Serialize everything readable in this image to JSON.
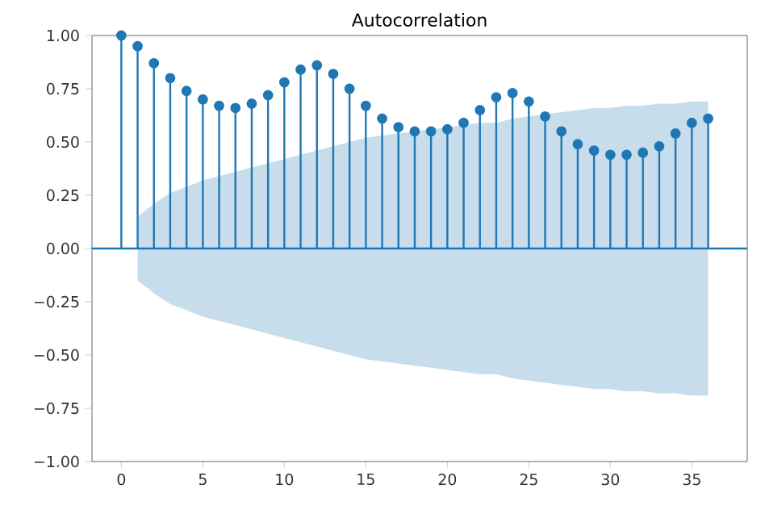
{
  "chart_data": {
    "type": "lollipop",
    "title": "Autocorrelation",
    "x": [
      0,
      1,
      2,
      3,
      4,
      5,
      6,
      7,
      8,
      9,
      10,
      11,
      12,
      13,
      14,
      15,
      16,
      17,
      18,
      19,
      20,
      21,
      22,
      23,
      24,
      25,
      26,
      27,
      28,
      29,
      30,
      31,
      32,
      33,
      34,
      35,
      36
    ],
    "marker": "circle",
    "series": [
      {
        "color": "#1f77b4",
        "values": [
          1.0,
          0.95,
          0.87,
          0.8,
          0.74,
          0.7,
          0.67,
          0.66,
          0.68,
          0.72,
          0.78,
          0.84,
          0.86,
          0.82,
          0.75,
          0.67,
          0.61,
          0.57,
          0.55,
          0.55,
          0.56,
          0.59,
          0.65,
          0.71,
          0.73,
          0.69,
          0.62,
          0.55,
          0.49,
          0.46,
          0.44,
          0.44,
          0.45,
          0.48,
          0.54,
          0.59,
          0.61
        ],
        "upper": [
          null,
          0.15,
          0.21,
          0.26,
          0.29,
          0.32,
          0.34,
          0.36,
          0.38,
          0.4,
          0.42,
          0.44,
          0.46,
          0.48,
          0.5,
          0.52,
          0.53,
          0.54,
          0.55,
          0.56,
          0.57,
          0.58,
          0.59,
          0.59,
          0.61,
          0.62,
          0.63,
          0.64,
          0.65,
          0.66,
          0.66,
          0.67,
          0.67,
          0.68,
          0.68,
          0.69,
          0.69
        ],
        "lower": [
          null,
          -0.15,
          -0.21,
          -0.26,
          -0.29,
          -0.32,
          -0.34,
          -0.36,
          -0.38,
          -0.4,
          -0.42,
          -0.44,
          -0.46,
          -0.48,
          -0.5,
          -0.52,
          -0.53,
          -0.54,
          -0.55,
          -0.56,
          -0.57,
          -0.58,
          -0.59,
          -0.59,
          -0.61,
          -0.62,
          -0.63,
          -0.64,
          -0.65,
          -0.66,
          -0.66,
          -0.67,
          -0.67,
          -0.68,
          -0.68,
          -0.69,
          -0.69
        ]
      }
    ],
    "ref_lines": [
      {
        "axis": "y",
        "value": 0,
        "color": "#1f77b4"
      }
    ],
    "xlim": [
      -1.8,
      38.4
    ],
    "ylim": [
      -1,
      1
    ],
    "xticks": [
      0,
      5,
      10,
      15,
      20,
      25,
      30,
      35
    ],
    "yticks": [
      {
        "value": -1,
        "label": "−1.00"
      },
      {
        "value": -0.75,
        "label": "−0.75"
      },
      {
        "value": -0.5,
        "label": "−0.50"
      },
      {
        "value": -0.25,
        "label": "−0.25"
      },
      {
        "value": 0,
        "label": "0.00"
      },
      {
        "value": 0.25,
        "label": "0.25"
      },
      {
        "value": 0.5,
        "label": "0.50"
      },
      {
        "value": 0.75,
        "label": "0.75"
      },
      {
        "value": 1,
        "label": "1.00"
      }
    ]
  }
}
